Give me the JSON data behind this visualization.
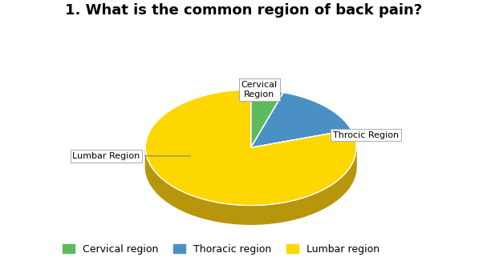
{
  "title": "1. What is the common region of back pain?",
  "labels": [
    "Cervical Region",
    "Throcic Region",
    "Lumbar Region"
  ],
  "legend_labels": [
    "Cervical region",
    "Thoracic region",
    "Lumbar region"
  ],
  "values": [
    5,
    15,
    80
  ],
  "colors_top": [
    "#5DBB5D",
    "#4A90C4",
    "#FFD700"
  ],
  "colors_side": [
    "#3A8A3A",
    "#2A6090",
    "#B8960C"
  ],
  "startangle": 90,
  "title_fontsize": 13,
  "background_color": "#ffffff"
}
